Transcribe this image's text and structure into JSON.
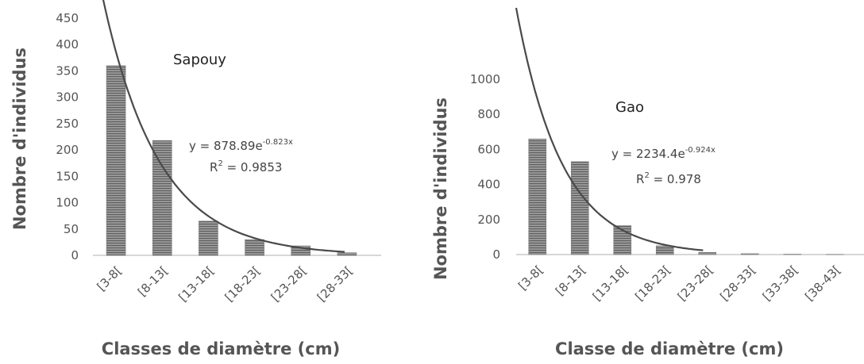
{
  "chart_data": [
    {
      "type": "bar",
      "title": "Sapouy",
      "xlabel": "Classes de diamètre (cm)",
      "ylabel": "Nombre d'individus",
      "categories": [
        "[3-8[",
        "[8-13[",
        "[13-18[",
        "[18-23[",
        "[23-28[",
        "[28-33["
      ],
      "values": [
        360,
        218,
        65,
        30,
        18,
        5
      ],
      "ylim": [
        0,
        450
      ],
      "yticks": [
        "0",
        "50",
        "100",
        "150",
        "200",
        "250",
        "300",
        "350",
        "400",
        "450"
      ],
      "trendline": {
        "type": "exponential",
        "a": 878.89,
        "b": -0.823,
        "equation_main": "y = 878.89e",
        "equation_exp": "-0.823x",
        "r2_main": "R",
        "r2_rest": " = 0.9853"
      },
      "grid": false,
      "legend": "none",
      "colors": {
        "bar": "#8a8a8a",
        "trend": "#4a4a4a"
      }
    },
    {
      "type": "bar",
      "title": "Gao",
      "xlabel": "Classe de diamètre (cm)",
      "ylabel": "Nombre d'individus",
      "categories": [
        "[3-8[",
        "[8-13[",
        "[13-18[",
        "[18-23[",
        "[23-28[",
        "[28-33[",
        "[33-38[",
        "[38-43["
      ],
      "values": [
        660,
        530,
        165,
        50,
        12,
        5,
        2,
        1
      ],
      "ylim": [
        0,
        1000
      ],
      "yticks": [
        "0",
        "200",
        "400",
        "600",
        "800",
        "1000"
      ],
      "trendline": {
        "type": "exponential",
        "a": 2234.4,
        "b": -0.924,
        "equation_main": "y = 2234.4e",
        "equation_exp": "-0.924x",
        "r2_main": "R",
        "r2_rest": " = 0.978"
      },
      "grid": false,
      "legend": "none",
      "colors": {
        "bar": "#8a8a8a",
        "trend": "#4a4a4a"
      }
    }
  ]
}
